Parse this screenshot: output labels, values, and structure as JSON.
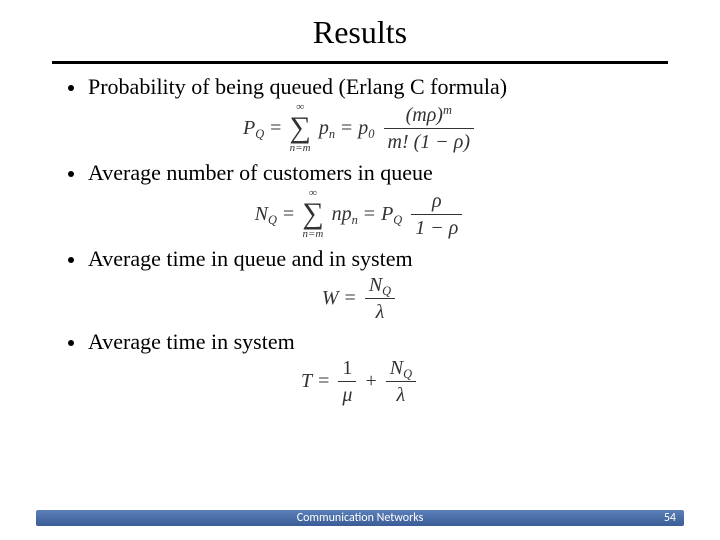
{
  "title": "Results",
  "bullets": {
    "b1": "Probability of being queued (Erlang C formula)",
    "b2": "Average number of customers in queue",
    "b3": "Average time in queue and in system",
    "b4": "Average time in system"
  },
  "formulas": {
    "f1": {
      "lhs_sym": "P",
      "lhs_sub": "Q",
      "sum_upper": "∞",
      "sum_lower": "n=m",
      "term1_sym": "p",
      "term1_sub": "n",
      "p0_sym": "p",
      "p0_sub": "0",
      "num_a": "(mρ)",
      "num_exp": "m",
      "den_a": "m!",
      "den_b": "(1 − ρ)"
    },
    "f2": {
      "lhs_sym": "N",
      "lhs_sub": "Q",
      "sum_upper": "∞",
      "sum_lower": "n=m",
      "term1": "n",
      "term1b_sym": "p",
      "term1b_sub": "n",
      "rhs_sym": "P",
      "rhs_sub": "Q",
      "num": "ρ",
      "den": "1 − ρ"
    },
    "f3": {
      "lhs": "W",
      "num_sym": "N",
      "num_sub": "Q",
      "den": "λ"
    },
    "f4": {
      "lhs": "T",
      "t1_num": "1",
      "t1_den": "μ",
      "t2_num_sym": "N",
      "t2_num_sub": "Q",
      "t2_den": "λ"
    }
  },
  "footer": {
    "title": "Communication Networks",
    "page": "54"
  }
}
